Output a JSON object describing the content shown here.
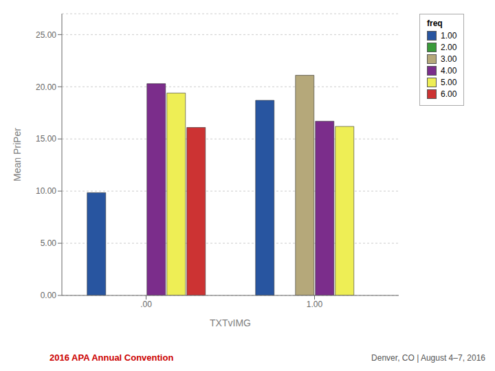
{
  "chart_data": {
    "type": "bar",
    "xlabel": "TXTvIMG",
    "ylabel": "Mean PriPer",
    "categories": [
      ".00",
      "1.00"
    ],
    "series": [
      {
        "name": "1.00",
        "color": "#2855a0",
        "values": [
          9.85,
          18.7
        ]
      },
      {
        "name": "2.00",
        "color": "#3a9a3a",
        "values": [
          null,
          null
        ]
      },
      {
        "name": "3.00",
        "color": "#b5a87a",
        "values": [
          null,
          21.1
        ]
      },
      {
        "name": "4.00",
        "color": "#7b2d8b",
        "values": [
          20.3,
          16.7
        ]
      },
      {
        "name": "5.00",
        "color": "#eeee55",
        "values": [
          19.4,
          16.2
        ]
      },
      {
        "name": "6.00",
        "color": "#cc3333",
        "values": [
          16.1,
          null
        ]
      }
    ],
    "ylim": [
      0,
      27
    ],
    "yticks": [
      {
        "value": 0,
        "label": "0.00"
      },
      {
        "value": 5,
        "label": "5.00"
      },
      {
        "value": 10,
        "label": "10.00"
      },
      {
        "value": 15,
        "label": "15.00"
      },
      {
        "value": 20,
        "label": "20.00"
      },
      {
        "value": 25,
        "label": "25.00"
      }
    ],
    "grid": "y",
    "legend": "upper right",
    "legend_title": "freq",
    "annotations": [
      {
        "text": "2016 APA Annual Convention",
        "color": "#cc0000"
      },
      {
        "text": "Denver, CO | August 4–7, 2016",
        "color": "#555555"
      }
    ]
  }
}
